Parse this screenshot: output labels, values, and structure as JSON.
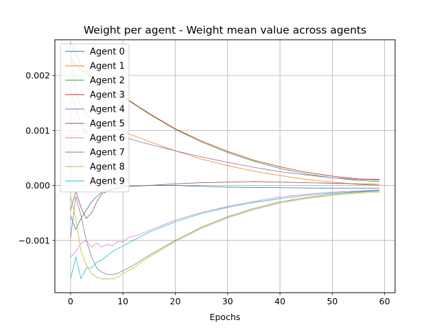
{
  "chart_data": {
    "type": "line",
    "title": "Weight per agent - Weight mean value across agents",
    "xlabel": "Epochs",
    "ylabel": "",
    "xlim": [
      -3,
      62
    ],
    "ylim": [
      -0.00195,
      0.00265
    ],
    "xticks": [
      0,
      10,
      20,
      30,
      40,
      50,
      60
    ],
    "yticks": [
      -0.001,
      0.0,
      0.001,
      0.002
    ],
    "xtick_labels": [
      "0",
      "10",
      "20",
      "30",
      "40",
      "50",
      "60"
    ],
    "ytick_labels": [
      "−0.001",
      "0.000",
      "0.001",
      "0.002"
    ],
    "grid": true,
    "legend": "upper-left",
    "epochs": 60,
    "series": [
      {
        "name": "Agent 0",
        "color": "#1f77b4",
        "points": [
          [
            0,
            -0.00055
          ],
          [
            1,
            -0.0008
          ],
          [
            2,
            -0.0006
          ],
          [
            3,
            -0.00045
          ],
          [
            4,
            -0.0003
          ],
          [
            5,
            -0.0002
          ],
          [
            6,
            -0.00012
          ],
          [
            8,
            -6e-05
          ],
          [
            10,
            -2e-05
          ],
          [
            15,
            0.0
          ],
          [
            20,
            0.0
          ],
          [
            30,
            -3e-05
          ],
          [
            40,
            -4e-05
          ],
          [
            50,
            -5e-05
          ],
          [
            59,
            -5e-05
          ]
        ]
      },
      {
        "name": "Agent 1",
        "color": "#ff7f0e",
        "points": [
          [
            0,
            0.0024
          ],
          [
            1,
            0.0017
          ],
          [
            2,
            0.00145
          ],
          [
            3,
            0.0013
          ],
          [
            5,
            0.00115
          ],
          [
            8,
            0.00105
          ],
          [
            10,
            0.00098
          ],
          [
            15,
            0.0008
          ],
          [
            20,
            0.00063
          ],
          [
            25,
            0.00048
          ],
          [
            30,
            0.00036
          ],
          [
            35,
            0.00026
          ],
          [
            40,
            0.00018
          ],
          [
            45,
            0.00011
          ],
          [
            50,
            6e-05
          ],
          [
            55,
            2e-05
          ],
          [
            59,
            0.0
          ]
        ]
      },
      {
        "name": "Agent 2",
        "color": "#2ca02c",
        "points": [
          [
            0,
            0.0026
          ],
          [
            1,
            0.0024
          ],
          [
            2,
            0.0022
          ],
          [
            3,
            0.0021
          ],
          [
            5,
            0.0019
          ],
          [
            8,
            0.00172
          ],
          [
            10,
            0.00161
          ],
          [
            15,
            0.0013
          ],
          [
            20,
            0.00102
          ],
          [
            25,
            0.00079
          ],
          [
            30,
            0.0006
          ],
          [
            35,
            0.00044
          ],
          [
            40,
            0.00031
          ],
          [
            45,
            0.00021
          ],
          [
            50,
            0.00014
          ],
          [
            55,
            9e-05
          ],
          [
            59,
            7e-05
          ]
        ]
      },
      {
        "name": "Agent 3",
        "color": "#d62728",
        "points": [
          [
            0,
            0.0023
          ],
          [
            1,
            0.0022
          ],
          [
            2,
            0.0021
          ],
          [
            3,
            0.00205
          ],
          [
            5,
            0.0019
          ],
          [
            8,
            0.00172
          ],
          [
            10,
            0.00162
          ],
          [
            15,
            0.00131
          ],
          [
            20,
            0.00103
          ],
          [
            25,
            0.00081
          ],
          [
            30,
            0.00062
          ],
          [
            35,
            0.00046
          ],
          [
            40,
            0.00034
          ],
          [
            45,
            0.00024
          ],
          [
            50,
            0.00017
          ],
          [
            55,
            0.00012
          ],
          [
            59,
            0.00011
          ]
        ]
      },
      {
        "name": "Agent 4",
        "color": "#9467bd",
        "points": [
          [
            0,
            0.0017
          ],
          [
            1,
            0.0014
          ],
          [
            2,
            0.0011
          ],
          [
            3,
            0.00095
          ],
          [
            5,
            0.00093
          ],
          [
            8,
            0.0009
          ],
          [
            10,
            0.00088
          ],
          [
            15,
            0.00075
          ],
          [
            20,
            0.00063
          ],
          [
            25,
            0.00052
          ],
          [
            30,
            0.00042
          ],
          [
            35,
            0.00033
          ],
          [
            40,
            0.00025
          ],
          [
            45,
            0.00019
          ],
          [
            50,
            0.00014
          ],
          [
            55,
            0.00011
          ],
          [
            59,
            0.0001
          ]
        ]
      },
      {
        "name": "Agent 5",
        "color": "#8c564b",
        "points": [
          [
            0,
            -0.00045
          ],
          [
            1,
            -0.0001
          ],
          [
            2,
            -0.0004
          ],
          [
            3,
            -0.0006
          ],
          [
            4,
            -0.0005
          ],
          [
            5,
            -0.0003
          ],
          [
            6,
            -0.00015
          ],
          [
            8,
            -8e-05
          ],
          [
            10,
            -2e-05
          ],
          [
            15,
            0.0
          ],
          [
            20,
            3e-05
          ],
          [
            25,
            5e-05
          ],
          [
            30,
            6e-05
          ],
          [
            35,
            7e-05
          ],
          [
            40,
            6e-05
          ],
          [
            45,
            5e-05
          ],
          [
            50,
            4e-05
          ],
          [
            59,
            2e-05
          ]
        ]
      },
      {
        "name": "Agent 6",
        "color": "#e377c2",
        "points": [
          [
            0,
            -0.0013
          ],
          [
            1,
            -0.0012
          ],
          [
            2,
            -0.00105
          ],
          [
            3,
            -0.001
          ],
          [
            4,
            -0.00112
          ],
          [
            5,
            -0.00105
          ],
          [
            6,
            -0.00112
          ],
          [
            7,
            -0.00107
          ],
          [
            8,
            -0.0011
          ],
          [
            9,
            -0.00102
          ],
          [
            10,
            -0.00103
          ],
          [
            11,
            -0.00095
          ],
          [
            13,
            -0.0009
          ],
          [
            15,
            -0.00082
          ],
          [
            20,
            -0.00063
          ],
          [
            25,
            -0.00049
          ],
          [
            30,
            -0.00038
          ],
          [
            35,
            -0.00029
          ],
          [
            40,
            -0.00021
          ],
          [
            45,
            -0.00016
          ],
          [
            50,
            -0.00012
          ],
          [
            55,
            -0.0001
          ],
          [
            59,
            -8e-05
          ]
        ]
      },
      {
        "name": "Agent 7",
        "color": "#7f7f7f",
        "points": [
          [
            0,
            -0.00095
          ],
          [
            1,
            -0.0002
          ],
          [
            2,
            -0.00055
          ],
          [
            3,
            -0.001
          ],
          [
            4,
            -0.0013
          ],
          [
            5,
            -0.0015
          ],
          [
            6,
            -0.00158
          ],
          [
            7,
            -0.00162
          ],
          [
            8,
            -0.00162
          ],
          [
            9,
            -0.0016
          ],
          [
            10,
            -0.00155
          ],
          [
            12,
            -0.00145
          ],
          [
            15,
            -0.00127
          ],
          [
            20,
            -0.001
          ],
          [
            25,
            -0.00076
          ],
          [
            30,
            -0.00057
          ],
          [
            35,
            -0.00042
          ],
          [
            40,
            -0.0003
          ],
          [
            45,
            -0.00022
          ],
          [
            50,
            -0.00016
          ],
          [
            55,
            -0.00012
          ],
          [
            59,
            -0.0001
          ]
        ]
      },
      {
        "name": "Agent 8",
        "color": "#bcbd22",
        "points": [
          [
            0,
            -0.0002
          ],
          [
            1,
            -0.0006
          ],
          [
            2,
            -0.0012
          ],
          [
            3,
            -0.00145
          ],
          [
            4,
            -0.0016
          ],
          [
            5,
            -0.00167
          ],
          [
            6,
            -0.0017
          ],
          [
            7,
            -0.0017
          ],
          [
            8,
            -0.0017
          ],
          [
            9,
            -0.00167
          ],
          [
            10,
            -0.0016
          ],
          [
            12,
            -0.0015
          ],
          [
            15,
            -0.0013
          ],
          [
            20,
            -0.00102
          ],
          [
            25,
            -0.00078
          ],
          [
            30,
            -0.00059
          ],
          [
            35,
            -0.00044
          ],
          [
            40,
            -0.00032
          ],
          [
            45,
            -0.00024
          ],
          [
            50,
            -0.00018
          ],
          [
            55,
            -0.00014
          ],
          [
            59,
            -0.00012
          ]
        ]
      },
      {
        "name": "Agent 9",
        "color": "#17becf",
        "points": [
          [
            0,
            -0.0017
          ],
          [
            1,
            -0.0013
          ],
          [
            2,
            -0.0017
          ],
          [
            3,
            -0.0015
          ],
          [
            4,
            -0.0015
          ],
          [
            5,
            -0.0014
          ],
          [
            6,
            -0.00135
          ],
          [
            7,
            -0.00128
          ],
          [
            8,
            -0.0012
          ],
          [
            9,
            -0.00115
          ],
          [
            10,
            -0.0011
          ],
          [
            12,
            -0.001
          ],
          [
            15,
            -0.00085
          ],
          [
            20,
            -0.00066
          ],
          [
            25,
            -0.00051
          ],
          [
            30,
            -0.0004
          ],
          [
            35,
            -0.00031
          ],
          [
            40,
            -0.00024
          ],
          [
            45,
            -0.00018
          ],
          [
            50,
            -0.00014
          ],
          [
            55,
            -0.00011
          ],
          [
            59,
            -9e-05
          ]
        ]
      }
    ]
  }
}
